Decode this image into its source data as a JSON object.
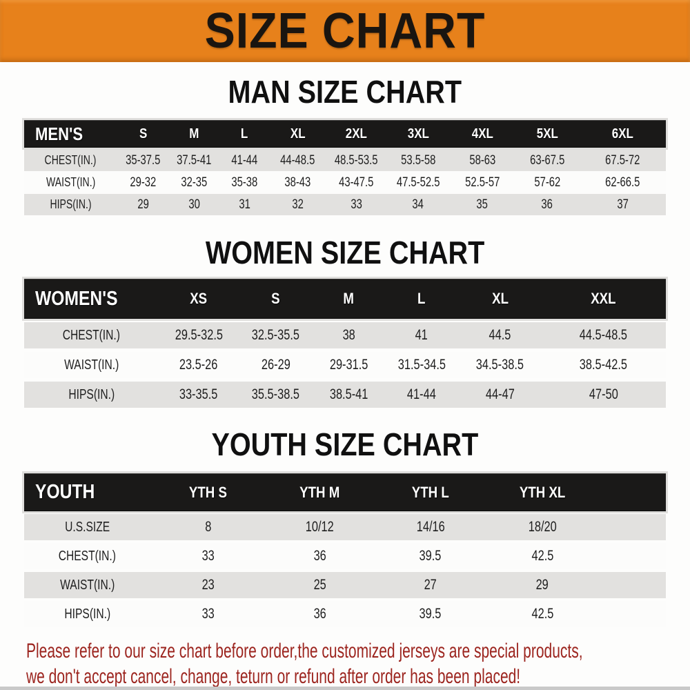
{
  "banner": {
    "title": "SIZE CHART"
  },
  "colors": {
    "banner_bg": "#E7811B",
    "table_header_bg": "#1A1918",
    "row_gray": "#E2E1DF",
    "row_white": "#FCFCFB",
    "footer_red": "#9C241E"
  },
  "sections": {
    "men": {
      "heading": "MAN SIZE CHART",
      "header": [
        "MEN'S",
        "S",
        "M",
        "L",
        "XL",
        "2XL",
        "3XL",
        "4XL",
        "5XL",
        "6XL"
      ],
      "rows": [
        {
          "label": "CHEST(IN.)",
          "values": [
            "35-37.5",
            "37.5-41",
            "41-44",
            "44-48.5",
            "48.5-53.5",
            "53.5-58",
            "58-63",
            "63-67.5",
            "67.5-72"
          ]
        },
        {
          "label": "WAIST(IN.)",
          "values": [
            "29-32",
            "32-35",
            "35-38",
            "38-43",
            "43-47.5",
            "47.5-52.5",
            "52.5-57",
            "57-62",
            "62-66.5"
          ]
        },
        {
          "label": "HIPS(IN.)",
          "values": [
            "29",
            "30",
            "31",
            "32",
            "33",
            "34",
            "35",
            "36",
            "37"
          ]
        }
      ]
    },
    "women": {
      "heading": "WOMEN SIZE CHART",
      "header": [
        "WOMEN'S",
        "XS",
        "S",
        "M",
        "L",
        "XL",
        "XXL"
      ],
      "rows": [
        {
          "label": "CHEST(IN.)",
          "values": [
            "29.5-32.5",
            "32.5-35.5",
            "38",
            "41",
            "44.5",
            "44.5-48.5"
          ]
        },
        {
          "label": "WAIST(IN.)",
          "values": [
            "23.5-26",
            "26-29",
            "29-31.5",
            "31.5-34.5",
            "34.5-38.5",
            "38.5-42.5"
          ]
        },
        {
          "label": "HIPS(IN.)",
          "values": [
            "33-35.5",
            "35.5-38.5",
            "38.5-41",
            "41-44",
            "44-47",
            "47-50"
          ]
        }
      ]
    },
    "youth": {
      "heading": "YOUTH SIZE CHART",
      "header": [
        "YOUTH",
        "YTH S",
        "YTH M",
        "YTH L",
        "YTH XL"
      ],
      "rows": [
        {
          "label": "U.S.SIZE",
          "values": [
            "8",
            "10/12",
            "14/16",
            "18/20"
          ]
        },
        {
          "label": "CHEST(IN.)",
          "values": [
            "33",
            "36",
            "39.5",
            "42.5"
          ]
        },
        {
          "label": "WAIST(IN.)",
          "values": [
            "23",
            "25",
            "27",
            "29"
          ]
        },
        {
          "label": "HIPS(IN.)",
          "values": [
            "33",
            "36",
            "39.5",
            "42.5"
          ]
        }
      ]
    }
  },
  "footer": {
    "line1": "Please refer to our size chart before order,the customized jerseys are special products,",
    "line2": "we don't accept cancel, change, teturn or refund after order has been placed!"
  }
}
